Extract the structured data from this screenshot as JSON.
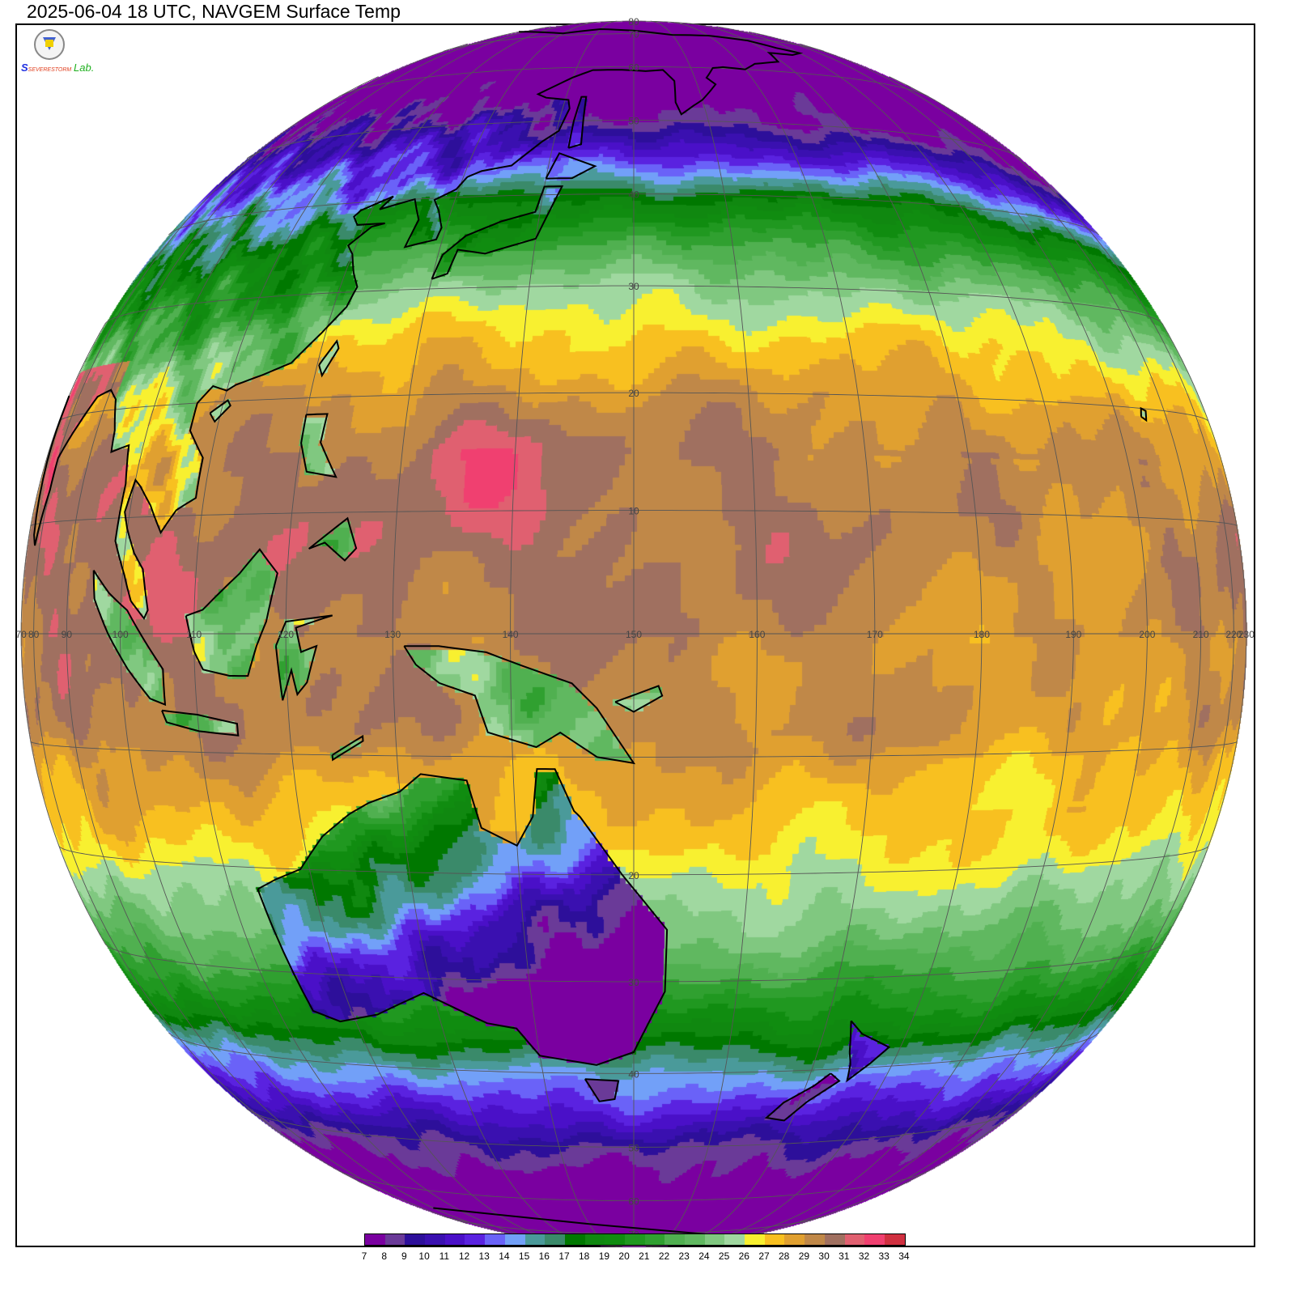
{
  "title": "2025-06-04 18 UTC, NAVGEM Surface Temp",
  "logo": {
    "text_1": "SEVERE",
    "text_2": "STORM",
    "text_3": "Lab."
  },
  "map": {
    "projection": "near-side perspective globe",
    "center_lon": 150,
    "center_lat": 0,
    "variable": "Surface Temp",
    "units": "°C",
    "lon_labels": [
      {
        "lon": 70,
        "text": "70"
      },
      {
        "lon": 80,
        "text": "80"
      },
      {
        "lon": 90,
        "text": "90"
      },
      {
        "lon": 100,
        "text": "100"
      },
      {
        "lon": 110,
        "text": "110"
      },
      {
        "lon": 120,
        "text": "120"
      },
      {
        "lon": 130,
        "text": "130"
      },
      {
        "lon": 140,
        "text": "140"
      },
      {
        "lon": 150,
        "text": "150"
      },
      {
        "lon": 160,
        "text": "160"
      },
      {
        "lon": 170,
        "text": "170"
      },
      {
        "lon": 180,
        "text": "180"
      },
      {
        "lon": 190,
        "text": "190"
      },
      {
        "lon": 200,
        "text": "200"
      },
      {
        "lon": 210,
        "text": "210"
      },
      {
        "lon": 220,
        "text": "220"
      },
      {
        "lon": 230,
        "text": "230"
      }
    ],
    "lat_labels": [
      {
        "lat": 80,
        "text": "80"
      },
      {
        "lat": 70,
        "text": "70"
      },
      {
        "lat": 60,
        "text": "60"
      },
      {
        "lat": 50,
        "text": "50"
      },
      {
        "lat": 40,
        "text": "40"
      },
      {
        "lat": 30,
        "text": "30"
      },
      {
        "lat": 20,
        "text": "20"
      },
      {
        "lat": 10,
        "text": "10"
      },
      {
        "lat": -20,
        "text": "20"
      },
      {
        "lat": -30,
        "text": "30"
      },
      {
        "lat": -40,
        "text": "40"
      },
      {
        "lat": -50,
        "text": "50"
      },
      {
        "lat": -60,
        "text": "60"
      },
      {
        "lat": -70,
        "text": "70"
      }
    ],
    "grid_spacing_deg": 10,
    "grid_color": "#555555",
    "coastline_color": "#000000"
  },
  "legend": {
    "labels": [
      "7",
      "8",
      "9",
      "10",
      "11",
      "12",
      "13",
      "14",
      "15",
      "16",
      "17",
      "18",
      "19",
      "20",
      "21",
      "22",
      "23",
      "24",
      "25",
      "26",
      "27",
      "28",
      "29",
      "30",
      "31",
      "32",
      "33",
      "34"
    ],
    "colors": [
      "#7a00a0",
      "#6a3a98",
      "#2d0f9a",
      "#3a10b0",
      "#4a10c8",
      "#5a22e0",
      "#6a62f8",
      "#72a0f8",
      "#4a9a9a",
      "#3a8a6a",
      "#007800",
      "#108810",
      "#108c10",
      "#209820",
      "#30a030",
      "#50b050",
      "#60b860",
      "#80c880",
      "#a0d8a0",
      "#f8f030",
      "#f8c020",
      "#e0a030",
      "#c08848",
      "#a07060",
      "#e06070",
      "#f04070",
      "#d03040"
    ]
  }
}
